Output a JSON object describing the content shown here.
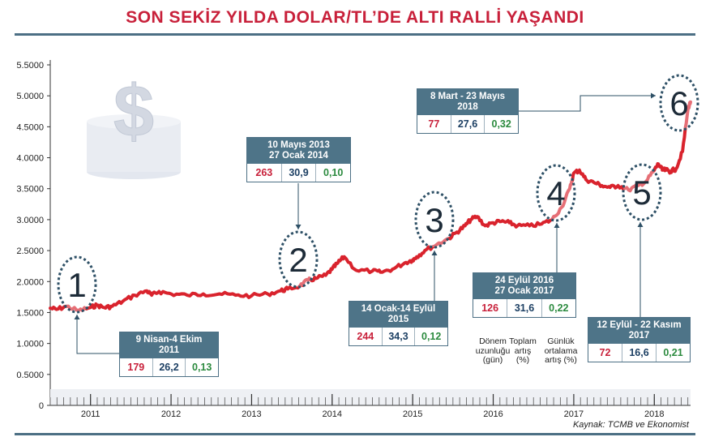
{
  "title": "SON SEKİZ YILDA DOLAR/TL’DE ALTI RALLİ YAŞANDI",
  "source": "Kaynak: TCMB ve Ekonomist",
  "legend": {
    "duration": "Dönem\nuzunluğu\n(gün)",
    "total": "Toplam\nartış\n(%)",
    "daily": "Günlük\nortalama\nartış (%)"
  },
  "colors": {
    "line": "#d9232d",
    "box_header": "#4e7488",
    "rule": "#4c6f84",
    "title": "#c8203a"
  },
  "rallies": [
    {
      "id": "1",
      "period": "9 Nisan-4 Ekim\n2011",
      "days": "179",
      "total": "26,2",
      "daily": "0,13"
    },
    {
      "id": "2",
      "period": "10 Mayıs 2013\n27 Ocak 2014",
      "days": "263",
      "total": "30,9",
      "daily": "0,10"
    },
    {
      "id": "3",
      "period": "14 Ocak-14 Eylül\n2015",
      "days": "244",
      "total": "34,3",
      "daily": "0,12"
    },
    {
      "id": "4",
      "period": "24 Eylül 2016\n27 Ocak 2017",
      "days": "126",
      "total": "31,6",
      "daily": "0,22"
    },
    {
      "id": "5",
      "period": "12 Eylül - 22 Kasım\n2017",
      "days": "72",
      "total": "16,6",
      "daily": "0,21"
    },
    {
      "id": "6",
      "period": "8 Mart - 23 Mayıs\n2018",
      "days": "77",
      "total": "27,6",
      "daily": "0,32"
    }
  ],
  "chart_data": {
    "type": "line",
    "y_tick_labels": [
      "0",
      "0.5000",
      "1.0000",
      "1.5000",
      "2.0000",
      "2.5000",
      "3.0000",
      "3.5000",
      "4.0000",
      "4.5000",
      "5.0000",
      "5.5000"
    ],
    "x_tick_labels": [
      "2011",
      "2012",
      "2013",
      "2014",
      "2015",
      "2016",
      "2017",
      "2018"
    ],
    "ylim": [
      0,
      5.5
    ],
    "xlim": [
      2010.5,
      2018.45
    ],
    "grid": false,
    "series": [
      {
        "x": [
          2010.5,
          2010.58,
          2010.7,
          2010.85,
          2011.0,
          2011.08,
          2011.17,
          2011.27,
          2011.4,
          2011.55,
          2011.7,
          2011.76,
          2011.85,
          2012.0,
          2012.2,
          2012.4,
          2012.6,
          2012.8,
          2013.0,
          2013.2,
          2013.36,
          2013.45,
          2013.6,
          2013.7,
          2013.8,
          2013.92,
          2014.0,
          2014.07,
          2014.15,
          2014.3,
          2014.5,
          2014.6,
          2014.75,
          2014.9,
          2015.0,
          2015.05,
          2015.15,
          2015.3,
          2015.45,
          2015.55,
          2015.65,
          2015.72,
          2015.8,
          2015.9,
          2016.0,
          2016.1,
          2016.2,
          2016.3,
          2016.45,
          2016.6,
          2016.73,
          2016.85,
          2016.95,
          2017.0,
          2017.07,
          2017.15,
          2017.25,
          2017.35,
          2017.45,
          2017.55,
          2017.68,
          2017.8,
          2017.9,
          2018.0,
          2018.05,
          2018.1,
          2018.15,
          2018.2,
          2018.27,
          2018.35,
          2018.42,
          2018.45
        ],
        "y": [
          1.57,
          1.55,
          1.6,
          1.53,
          1.58,
          1.62,
          1.58,
          1.6,
          1.68,
          1.78,
          1.85,
          1.78,
          1.84,
          1.8,
          1.78,
          1.8,
          1.8,
          1.78,
          1.77,
          1.8,
          1.85,
          1.88,
          1.93,
          2.02,
          2.05,
          2.1,
          2.2,
          2.3,
          2.4,
          2.18,
          2.17,
          2.15,
          2.2,
          2.3,
          2.35,
          2.4,
          2.5,
          2.6,
          2.7,
          2.8,
          2.9,
          3.0,
          3.05,
          2.9,
          2.95,
          2.97,
          2.95,
          2.9,
          2.9,
          2.93,
          3.0,
          3.2,
          3.5,
          3.75,
          3.8,
          3.65,
          3.6,
          3.55,
          3.52,
          3.55,
          3.48,
          3.55,
          3.62,
          3.8,
          3.9,
          3.8,
          3.8,
          3.78,
          3.82,
          4.1,
          4.8,
          4.9
        ]
      }
    ]
  }
}
